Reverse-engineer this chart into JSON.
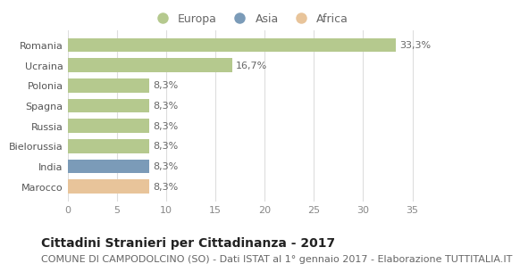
{
  "categories": [
    "Romania",
    "Ucraina",
    "Polonia",
    "Spagna",
    "Russia",
    "Bielorussia",
    "India",
    "Marocco"
  ],
  "values": [
    33.3,
    16.7,
    8.3,
    8.3,
    8.3,
    8.3,
    8.3,
    8.3
  ],
  "bar_colors": [
    "#b5c98e",
    "#b5c98e",
    "#b5c98e",
    "#b5c98e",
    "#b5c98e",
    "#b5c98e",
    "#7b9bb8",
    "#e8c49a"
  ],
  "labels": [
    "33,3%",
    "16,7%",
    "8,3%",
    "8,3%",
    "8,3%",
    "8,3%",
    "8,3%",
    "8,3%"
  ],
  "legend": [
    {
      "label": "Europa",
      "color": "#b5c98e"
    },
    {
      "label": "Asia",
      "color": "#7b9bb8"
    },
    {
      "label": "Africa",
      "color": "#e8c49a"
    }
  ],
  "xlim": [
    0,
    37
  ],
  "xticks": [
    0,
    5,
    10,
    15,
    20,
    25,
    30,
    35
  ],
  "title": "Cittadini Stranieri per Cittadinanza - 2017",
  "subtitle": "COMUNE DI CAMPODOLCINO (SO) - Dati ISTAT al 1° gennaio 2017 - Elaborazione TUTTITALIA.IT",
  "title_fontsize": 10,
  "subtitle_fontsize": 8,
  "background_color": "#ffffff",
  "grid_color": "#dddddd",
  "label_fontsize": 8,
  "tick_fontsize": 8,
  "bar_height": 0.7
}
